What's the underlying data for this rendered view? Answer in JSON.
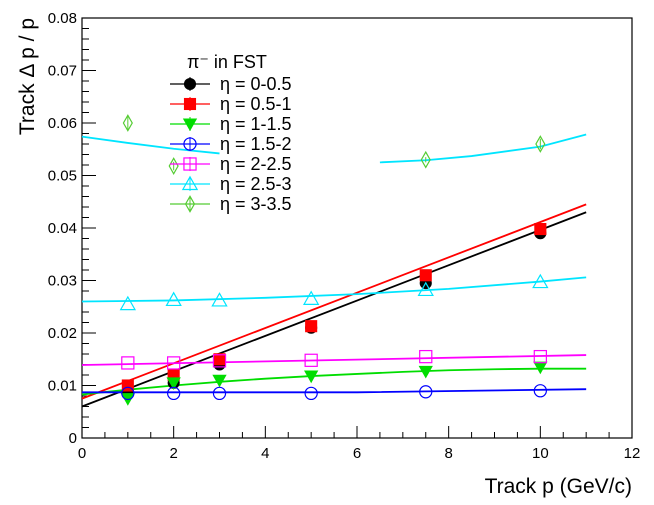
{
  "chart_data": {
    "type": "scatter",
    "xlabel": "Track p (GeV/c)",
    "ylabel": "Track Δ p / p",
    "xlim": [
      0,
      12
    ],
    "ylim": [
      0,
      0.08
    ],
    "xticks": [
      "0",
      "2",
      "4",
      "6",
      "8",
      "10",
      "12"
    ],
    "yticks": [
      "0",
      "0.01",
      "0.02",
      "0.03",
      "0.04",
      "0.05",
      "0.06",
      "0.07",
      "0.08"
    ],
    "legend": {
      "title": "π⁻ in FST",
      "placement": "top-left"
    },
    "series": [
      {
        "name": "η = 0-0.5",
        "color": "#000000",
        "marker": "filled-circle",
        "x": [
          1,
          2,
          3,
          5,
          7.5,
          10
        ],
        "y": [
          0.0085,
          0.0105,
          0.014,
          0.021,
          0.0295,
          0.039
        ],
        "fit_x": [
          0,
          11
        ],
        "fit_y": [
          0.006,
          0.043
        ]
      },
      {
        "name": "η = 0.5-1",
        "color": "#ff0000",
        "marker": "filled-square",
        "x": [
          1,
          2,
          3,
          5,
          7.5,
          10
        ],
        "y": [
          0.01,
          0.012,
          0.015,
          0.0213,
          0.031,
          0.0398
        ],
        "fit_x": [
          0,
          11
        ],
        "fit_y": [
          0.0075,
          0.0445
        ]
      },
      {
        "name": "η = 1-1.5",
        "color": "#00dd00",
        "marker": "filled-triangle-down",
        "x": [
          1,
          2,
          3,
          5,
          7.5,
          10
        ],
        "y": [
          0.0075,
          0.0105,
          0.011,
          0.0118,
          0.0127,
          0.0135
        ],
        "fit_x": [
          0,
          1,
          2,
          3,
          4,
          5,
          6,
          7,
          8,
          9,
          10,
          11
        ],
        "fit_y": [
          0.0083,
          0.0092,
          0.01,
          0.0107,
          0.0113,
          0.0118,
          0.0122,
          0.0126,
          0.0129,
          0.0131,
          0.0132,
          0.0132
        ]
      },
      {
        "name": "η = 1.5-2",
        "color": "#0000ff",
        "marker": "open-circle",
        "x": [
          1,
          2,
          3,
          5,
          7.5,
          10
        ],
        "y": [
          0.0085,
          0.0085,
          0.0085,
          0.0085,
          0.0088,
          0.009
        ],
        "fit_x": [
          0,
          6,
          11
        ],
        "fit_y": [
          0.0087,
          0.0087,
          0.0093
        ]
      },
      {
        "name": "η = 2-2.5",
        "color": "#ff00ff",
        "marker": "open-square",
        "x": [
          1,
          2,
          3,
          5,
          7.5,
          10
        ],
        "y": [
          0.0143,
          0.0143,
          0.0147,
          0.0148,
          0.0155,
          0.0155
        ],
        "fit_x": [
          0,
          11
        ],
        "fit_y": [
          0.0139,
          0.0158
        ]
      },
      {
        "name": "η = 2.5-3",
        "color": "#00e5ff",
        "marker": "open-triangle",
        "x": [
          1,
          2,
          3,
          5,
          7.5,
          10
        ],
        "y": [
          0.0255,
          0.0263,
          0.0262,
          0.0265,
          0.0282,
          0.0297
        ],
        "fit_x": [
          0,
          2,
          4,
          6,
          8,
          10,
          11
        ],
        "fit_y": [
          0.026,
          0.0262,
          0.0267,
          0.0274,
          0.0284,
          0.0298,
          0.0306
        ]
      },
      {
        "name": "η = 3-3.5",
        "color": "#55cc33",
        "marker": "open-diamond",
        "x": [
          1,
          2,
          7.5,
          10
        ],
        "y": [
          0.06,
          0.0518,
          0.053,
          0.056
        ],
        "yerr": [
          0.0013,
          0.0008,
          0.0005,
          0.001
        ],
        "fit_color": "#00e5ff",
        "fit_x": [
          0,
          1,
          2,
          3,
          6.5,
          7.5,
          8.5,
          10,
          11
        ],
        "fit_y": [
          0.0574,
          0.0562,
          0.0551,
          0.0542,
          0.0525,
          0.0529,
          0.0537,
          0.0555,
          0.0578
        ],
        "fit_gap": [
          3,
          6.5
        ]
      }
    ]
  }
}
